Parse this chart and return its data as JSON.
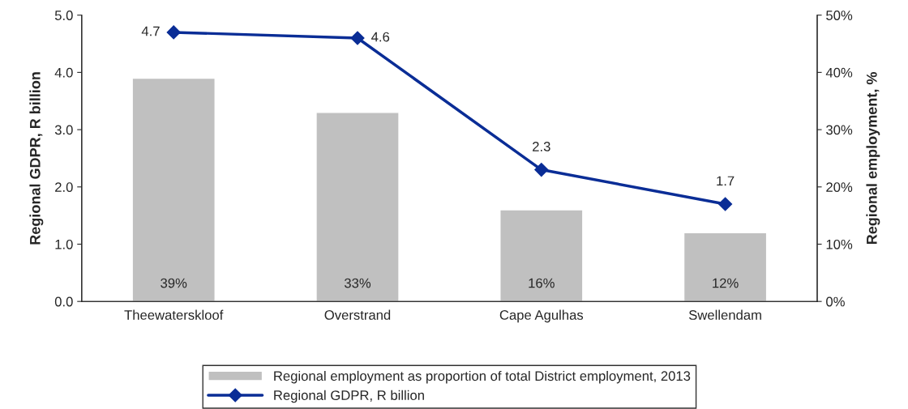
{
  "chart_data": {
    "type": "bar",
    "ylabel": "Regional GDPR, R billion",
    "y2label": "Regional employment, %",
    "categories": [
      "Theewaterskloof",
      "Overstrand",
      "Cape Agulhas",
      "Swellendam"
    ],
    "ylim": [
      0,
      5
    ],
    "yticks": [
      {
        "value": 0,
        "label": "0.0"
      },
      {
        "value": 1,
        "label": "1.0"
      },
      {
        "value": 2,
        "label": "2.0"
      },
      {
        "value": 3,
        "label": "3.0"
      },
      {
        "value": 4,
        "label": "4.0"
      },
      {
        "value": 5,
        "label": "5.0"
      }
    ],
    "y2lim": [
      0,
      50
    ],
    "y2ticks": [
      {
        "value": 0,
        "label": "0%"
      },
      {
        "value": 10,
        "label": "10%"
      },
      {
        "value": 20,
        "label": "20%"
      },
      {
        "value": 30,
        "label": "30%"
      },
      {
        "value": 40,
        "label": "40%"
      },
      {
        "value": 50,
        "label": "50%"
      }
    ],
    "series": [
      {
        "name": "Regional employment as proportion of total District employment, 2013",
        "type": "bar",
        "axis": "y2",
        "color": "#c0c0c0",
        "values": [
          39,
          33,
          16,
          12
        ],
        "value_labels": [
          "39%",
          "33%",
          "16%",
          "12%"
        ]
      },
      {
        "name": "Regional GDPR, R billion",
        "type": "line",
        "axis": "y",
        "color": "#0a2d96",
        "values": [
          4.7,
          4.6,
          2.3,
          1.7
        ],
        "marker": "diamond",
        "line_style": "solid",
        "data_labels": true
      }
    ],
    "grid": false,
    "legend": "bottom"
  }
}
